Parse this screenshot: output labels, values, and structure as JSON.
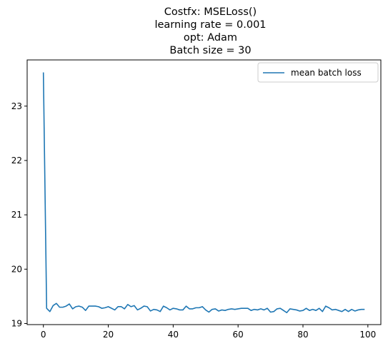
{
  "chart_data": {
    "type": "line",
    "title_lines": [
      "Costfx: MSELoss()",
      "learning rate = 0.001",
      "opt: Adam",
      "Batch size = 30"
    ],
    "xlabel": "",
    "ylabel": "",
    "xlim": [
      -5,
      104
    ],
    "ylim": [
      18.98,
      23.85
    ],
    "xticks": [
      0,
      20,
      40,
      60,
      80,
      100
    ],
    "yticks": [
      19,
      20,
      21,
      22,
      23
    ],
    "grid": false,
    "legend_position": "top-right",
    "series_color": "#1f77b4",
    "series": [
      {
        "name": "mean batch loss",
        "x": [
          0,
          1,
          2,
          3,
          4,
          5,
          6,
          7,
          8,
          9,
          10,
          11,
          12,
          13,
          14,
          15,
          16,
          17,
          18,
          19,
          20,
          21,
          22,
          23,
          24,
          25,
          26,
          27,
          28,
          29,
          30,
          31,
          32,
          33,
          34,
          35,
          36,
          37,
          38,
          39,
          40,
          41,
          42,
          43,
          44,
          45,
          46,
          47,
          48,
          49,
          50,
          51,
          52,
          53,
          54,
          55,
          56,
          57,
          58,
          59,
          60,
          61,
          62,
          63,
          64,
          65,
          66,
          67,
          68,
          69,
          70,
          71,
          72,
          73,
          74,
          75,
          76,
          77,
          78,
          79,
          80,
          81,
          82,
          83,
          84,
          85,
          86,
          87,
          88,
          89,
          90,
          91,
          92,
          93,
          94,
          95,
          96,
          97,
          98,
          99
        ],
        "values": [
          23.62,
          19.28,
          19.22,
          19.33,
          19.37,
          19.3,
          19.3,
          19.32,
          19.36,
          19.27,
          19.31,
          19.32,
          19.3,
          19.24,
          19.32,
          19.32,
          19.32,
          19.31,
          19.28,
          19.29,
          19.31,
          19.28,
          19.25,
          19.31,
          19.31,
          19.27,
          19.35,
          19.31,
          19.33,
          19.25,
          19.28,
          19.32,
          19.31,
          19.23,
          19.26,
          19.25,
          19.22,
          19.32,
          19.29,
          19.25,
          19.28,
          19.27,
          19.25,
          19.25,
          19.32,
          19.27,
          19.27,
          19.29,
          19.29,
          19.31,
          19.25,
          19.21,
          19.26,
          19.27,
          19.23,
          19.25,
          19.24,
          19.26,
          19.27,
          19.26,
          19.27,
          19.28,
          19.28,
          19.28,
          19.24,
          19.26,
          19.25,
          19.27,
          19.25,
          19.28,
          19.21,
          19.22,
          19.27,
          19.28,
          19.24,
          19.2,
          19.27,
          19.26,
          19.25,
          19.23,
          19.24,
          19.28,
          19.24,
          19.26,
          19.24,
          19.28,
          19.22,
          19.32,
          19.29,
          19.25,
          19.26,
          19.24,
          19.22,
          19.26,
          19.22,
          19.26,
          19.23,
          19.25,
          19.26,
          19.26
        ]
      }
    ]
  }
}
